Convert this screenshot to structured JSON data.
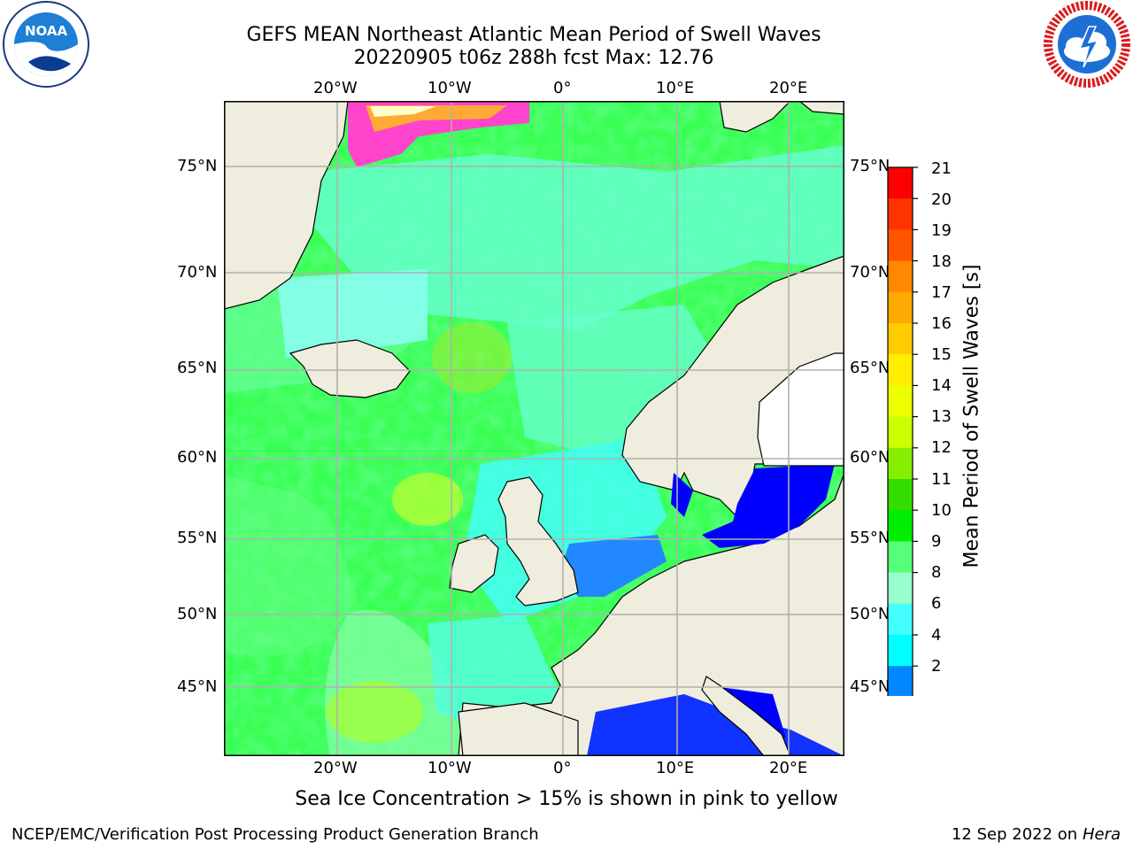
{
  "title_line1": "GEFS MEAN Northeast Atlantic Mean Period of Swell Waves",
  "title_line2": "20220905 t06z 288h fcst   Max: 12.76",
  "logos": {
    "left": {
      "name": "noaa-logo",
      "text": "NOAA"
    },
    "right": {
      "name": "nws-logo"
    }
  },
  "map": {
    "lon_labels": [
      "20°W",
      "10°W",
      "0°",
      "10°E",
      "20°E"
    ],
    "lat_labels": [
      "75°N",
      "70°N",
      "65°N",
      "60°N",
      "55°N",
      "50°N",
      "45°N"
    ],
    "colors": {
      "land": "#efeddd",
      "ocean_main": "#33ff55",
      "ocean_light": "#66ff88",
      "grid": "#b0b0b0"
    }
  },
  "colorbar": {
    "label": "Mean Period of Swell Waves [s]",
    "ticks": [
      "21",
      "20",
      "19",
      "18",
      "17",
      "16",
      "15",
      "14",
      "13",
      "12",
      "11",
      "10",
      "9",
      "8",
      "6",
      "4",
      "2"
    ],
    "colors_top_to_bottom": [
      "#ff0000",
      "#ff3300",
      "#ff5500",
      "#ff8800",
      "#ffaa00",
      "#ffcc00",
      "#ffee00",
      "#eeff00",
      "#ccff00",
      "#88ee00",
      "#33dd00",
      "#00ee00",
      "#55ff77",
      "#99ffcc",
      "#44ffff",
      "#00ffff",
      "#0088ff",
      "#0033ff"
    ]
  },
  "note": "Sea Ice Concentration > 15% is shown in pink to yellow",
  "footer": {
    "left": "NCEP/EMC/Verification Post Processing Product Generation Branch",
    "right_date": "12 Sep 2022 on",
    "right_machine": "Hera"
  }
}
